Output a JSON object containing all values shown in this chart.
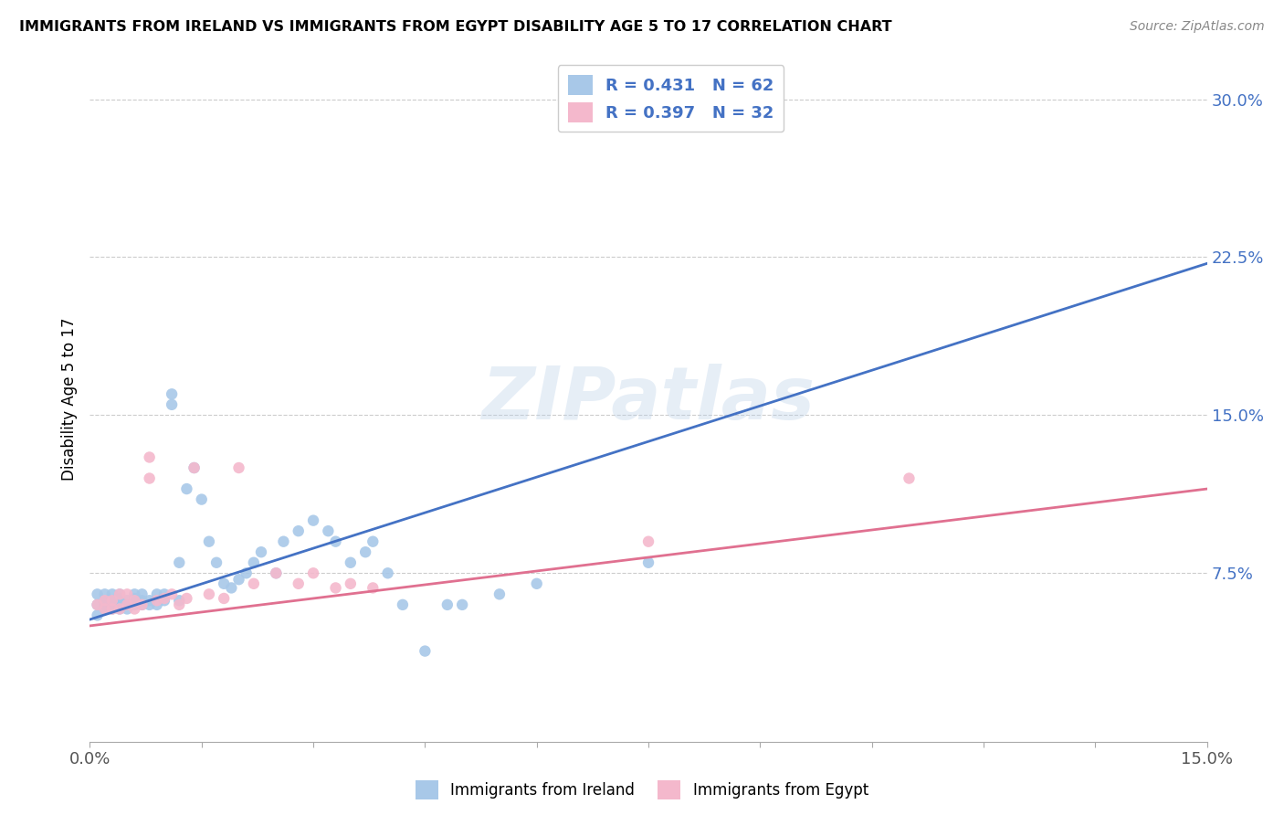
{
  "title": "IMMIGRANTS FROM IRELAND VS IMMIGRANTS FROM EGYPT DISABILITY AGE 5 TO 17 CORRELATION CHART",
  "source": "Source: ZipAtlas.com",
  "ylabel": "Disability Age 5 to 17",
  "y_ticks_right": [
    "7.5%",
    "15.0%",
    "22.5%",
    "30.0%"
  ],
  "ireland_color": "#a8c8e8",
  "egypt_color": "#f4b8cc",
  "ireland_line_color": "#4472c4",
  "egypt_line_color": "#e07090",
  "R_ireland": 0.431,
  "N_ireland": 62,
  "R_egypt": 0.397,
  "N_egypt": 32,
  "background_color": "#ffffff",
  "grid_color": "#cccccc",
  "ireland_x": [
    0.001,
    0.001,
    0.001,
    0.002,
    0.002,
    0.002,
    0.002,
    0.003,
    0.003,
    0.003,
    0.003,
    0.004,
    0.004,
    0.004,
    0.004,
    0.005,
    0.005,
    0.005,
    0.006,
    0.006,
    0.006,
    0.007,
    0.007,
    0.007,
    0.008,
    0.008,
    0.009,
    0.009,
    0.01,
    0.01,
    0.011,
    0.011,
    0.012,
    0.012,
    0.013,
    0.014,
    0.015,
    0.016,
    0.017,
    0.018,
    0.019,
    0.02,
    0.021,
    0.022,
    0.023,
    0.025,
    0.026,
    0.028,
    0.03,
    0.032,
    0.033,
    0.035,
    0.037,
    0.038,
    0.04,
    0.042,
    0.045,
    0.048,
    0.05,
    0.055,
    0.06,
    0.075
  ],
  "ireland_y": [
    0.055,
    0.06,
    0.065,
    0.058,
    0.06,
    0.062,
    0.065,
    0.058,
    0.06,
    0.062,
    0.065,
    0.058,
    0.06,
    0.063,
    0.065,
    0.058,
    0.06,
    0.062,
    0.06,
    0.063,
    0.065,
    0.06,
    0.062,
    0.065,
    0.06,
    0.062,
    0.06,
    0.065,
    0.062,
    0.065,
    0.16,
    0.155,
    0.062,
    0.08,
    0.115,
    0.125,
    0.11,
    0.09,
    0.08,
    0.07,
    0.068,
    0.072,
    0.075,
    0.08,
    0.085,
    0.075,
    0.09,
    0.095,
    0.1,
    0.095,
    0.09,
    0.08,
    0.085,
    0.09,
    0.075,
    0.06,
    0.038,
    0.06,
    0.06,
    0.065,
    0.07,
    0.08
  ],
  "egypt_x": [
    0.001,
    0.002,
    0.002,
    0.003,
    0.003,
    0.004,
    0.004,
    0.005,
    0.005,
    0.006,
    0.006,
    0.007,
    0.008,
    0.008,
    0.009,
    0.01,
    0.011,
    0.012,
    0.013,
    0.014,
    0.016,
    0.018,
    0.02,
    0.022,
    0.025,
    0.028,
    0.03,
    0.033,
    0.035,
    0.038,
    0.075,
    0.11
  ],
  "egypt_y": [
    0.06,
    0.058,
    0.062,
    0.058,
    0.062,
    0.058,
    0.065,
    0.06,
    0.065,
    0.058,
    0.062,
    0.06,
    0.12,
    0.13,
    0.062,
    0.063,
    0.065,
    0.06,
    0.063,
    0.125,
    0.065,
    0.063,
    0.125,
    0.07,
    0.075,
    0.07,
    0.075,
    0.068,
    0.07,
    0.068,
    0.09,
    0.12
  ],
  "xlim": [
    0.0,
    0.15
  ],
  "ylim": [
    -0.005,
    0.32
  ],
  "ireland_trend_x0": 0.0,
  "ireland_trend_y0": 0.053,
  "ireland_trend_x1": 0.15,
  "ireland_trend_y1": 0.222,
  "egypt_trend_x0": 0.0,
  "egypt_trend_y0": 0.05,
  "egypt_trend_x1": 0.15,
  "egypt_trend_y1": 0.115
}
